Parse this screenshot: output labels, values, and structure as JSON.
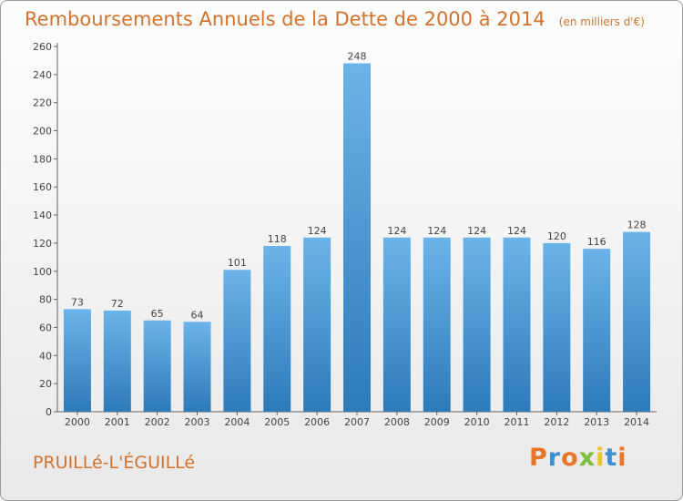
{
  "header": {
    "title": "Remboursements Annuels de la Dette de 2000 à 2014",
    "subtitle": "(en milliers d'€)"
  },
  "footer": {
    "commune": "PRUILLé-L'ÉGUILLé",
    "logo": "Proxiti"
  },
  "colors": {
    "bar_top": "#6bb4ea",
    "bar_bottom": "#2d7ab9",
    "accent": "#d2722d",
    "logo_letters": [
      "#e8762a",
      "#3a8fd1",
      "#e8762a",
      "#7cbd3a",
      "#e8c52a",
      "#3a8fd1",
      "#e8762a"
    ]
  },
  "chart_data": {
    "type": "bar",
    "title": "Remboursements Annuels de la Dette de 2000 à 2014",
    "subtitle": "(en milliers d'€)",
    "xlabel": "",
    "ylabel": "",
    "ylim": [
      0,
      260
    ],
    "ytick_step": 20,
    "grid": false,
    "categories": [
      "2000",
      "2001",
      "2002",
      "2003",
      "2004",
      "2005",
      "2006",
      "2007",
      "2008",
      "2009",
      "2010",
      "2011",
      "2012",
      "2013",
      "2014"
    ],
    "values": [
      73,
      72,
      65,
      64,
      101,
      118,
      124,
      248,
      124,
      124,
      124,
      124,
      120,
      116,
      128
    ]
  }
}
